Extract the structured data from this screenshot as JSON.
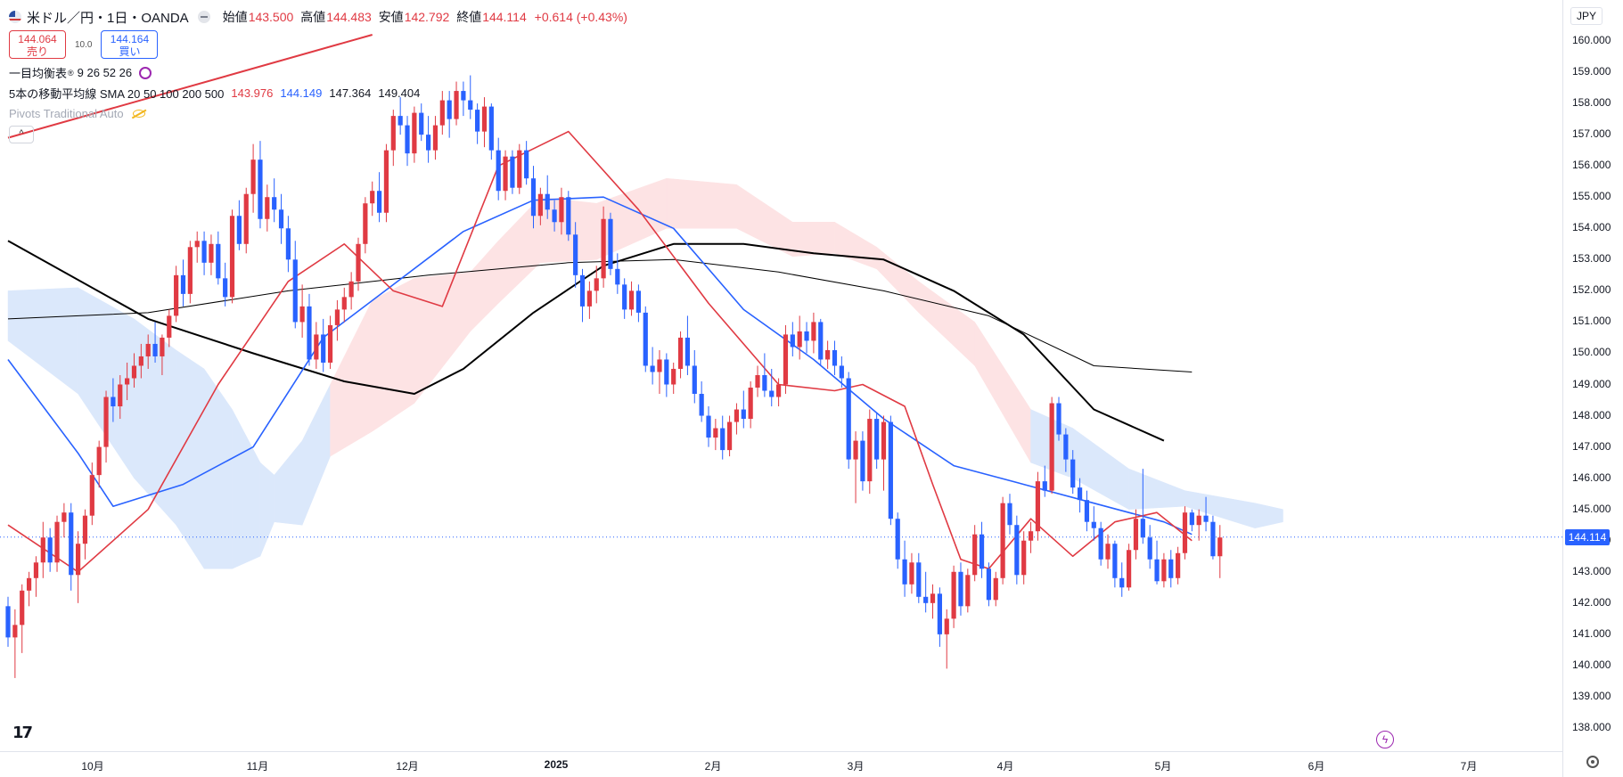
{
  "header": {
    "symbol": "米ドル／円・1日・OANDA",
    "open_label": "始値",
    "open": "143.500",
    "high_label": "高値",
    "high": "144.483",
    "low_label": "安値",
    "low": "142.792",
    "close_label": "終値",
    "close": "144.114",
    "change": "+0.614 (+0.43%)"
  },
  "quote": {
    "sell_price": "144.064",
    "sell_label": "売り",
    "spread": "10.0",
    "buy_price": "144.164",
    "buy_label": "買い"
  },
  "indicators": {
    "ichimoku_label": "一目均衡表",
    "ichimoku_params": "9 26 52 26",
    "sma_label": "5本の移動平均線 SMA 20 50 100 200 500",
    "sma_values": [
      "143.976",
      "144.149",
      "147.364",
      "149.404"
    ],
    "pivots_label": "Pivots Traditional Auto"
  },
  "axis": {
    "currency": "JPY",
    "current_price": "144.114",
    "y_ticks": [
      "160.000",
      "159.000",
      "158.000",
      "157.000",
      "156.000",
      "155.000",
      "154.000",
      "153.000",
      "152.000",
      "151.000",
      "150.000",
      "149.000",
      "148.000",
      "147.000",
      "146.000",
      "145.000",
      "144.000",
      "143.000",
      "142.000",
      "141.000",
      "140.000",
      "139.000",
      "138.000"
    ],
    "x_ticks": [
      "10月",
      "11月",
      "12月",
      "2025",
      "2月",
      "3月",
      "4月",
      "5月",
      "6月",
      "7月"
    ]
  },
  "colors": {
    "up": "#e03a43",
    "down": "#2962ff",
    "sma20": "#e03a43",
    "sma50": "#2962ff",
    "sma200": "#000000",
    "sma500": "#000000",
    "cloud_bull": "#fde3e4",
    "cloud_bear": "#dbe8fb"
  },
  "chart_data": {
    "type": "candlestick",
    "title": "米ドル／円・1日・OANDA",
    "ylim": [
      137.6,
      160.4
    ],
    "y_unit": "JPY",
    "candles_ohlc": [
      [
        141.9,
        142.2,
        140.6,
        140.9
      ],
      [
        140.9,
        141.8,
        139.6,
        141.3
      ],
      [
        141.3,
        142.6,
        140.4,
        142.4
      ],
      [
        142.4,
        143.0,
        141.9,
        142.8
      ],
      [
        142.8,
        143.5,
        142.2,
        143.3
      ],
      [
        143.3,
        144.6,
        142.8,
        144.1
      ],
      [
        144.1,
        144.4,
        143.0,
        143.3
      ],
      [
        143.3,
        144.8,
        143.0,
        144.6
      ],
      [
        144.6,
        145.2,
        144.1,
        144.9
      ],
      [
        144.9,
        145.2,
        142.4,
        142.9
      ],
      [
        142.9,
        144.3,
        142.0,
        143.9
      ],
      [
        143.9,
        145.0,
        143.4,
        144.8
      ],
      [
        144.8,
        146.5,
        144.5,
        146.1
      ],
      [
        146.1,
        147.2,
        145.7,
        147.0
      ],
      [
        147.0,
        148.8,
        146.5,
        148.6
      ],
      [
        148.6,
        149.2,
        147.8,
        148.3
      ],
      [
        148.3,
        149.3,
        147.9,
        149.0
      ],
      [
        149.0,
        149.7,
        148.5,
        149.2
      ],
      [
        149.2,
        150.0,
        148.9,
        149.6
      ],
      [
        149.6,
        150.3,
        149.2,
        149.9
      ],
      [
        149.9,
        150.6,
        149.5,
        150.3
      ],
      [
        150.3,
        151.0,
        149.7,
        149.9
      ],
      [
        149.9,
        150.6,
        149.3,
        150.5
      ],
      [
        150.5,
        151.4,
        150.2,
        151.2
      ],
      [
        151.2,
        152.8,
        151.0,
        152.5
      ],
      [
        152.5,
        153.0,
        151.5,
        151.9
      ],
      [
        151.9,
        153.6,
        151.6,
        153.4
      ],
      [
        153.4,
        153.9,
        152.9,
        153.6
      ],
      [
        153.6,
        153.9,
        152.5,
        152.9
      ],
      [
        152.9,
        153.8,
        152.5,
        153.5
      ],
      [
        153.5,
        153.9,
        152.2,
        152.4
      ],
      [
        152.4,
        152.9,
        151.5,
        151.8
      ],
      [
        151.8,
        154.6,
        151.6,
        154.4
      ],
      [
        154.4,
        154.9,
        153.3,
        153.5
      ],
      [
        153.5,
        155.3,
        153.2,
        155.1
      ],
      [
        155.1,
        156.7,
        154.5,
        156.2
      ],
      [
        156.2,
        156.8,
        154.0,
        154.3
      ],
      [
        154.3,
        155.4,
        153.9,
        155.0
      ],
      [
        155.0,
        155.6,
        154.2,
        154.6
      ],
      [
        154.6,
        155.1,
        153.5,
        154.0
      ],
      [
        154.0,
        154.4,
        152.6,
        153.0
      ],
      [
        153.0,
        153.6,
        150.8,
        151.0
      ],
      [
        151.0,
        152.2,
        150.5,
        151.5
      ],
      [
        151.5,
        151.9,
        149.6,
        149.8
      ],
      [
        149.8,
        151.0,
        149.5,
        150.6
      ],
      [
        150.6,
        151.1,
        149.4,
        149.7
      ],
      [
        149.7,
        151.2,
        149.5,
        150.9
      ],
      [
        150.9,
        151.7,
        150.4,
        151.4
      ],
      [
        151.4,
        152.1,
        151.0,
        151.8
      ],
      [
        151.8,
        152.6,
        151.4,
        152.3
      ],
      [
        152.3,
        153.7,
        152.0,
        153.5
      ],
      [
        153.5,
        155.0,
        153.2,
        154.8
      ],
      [
        154.8,
        155.5,
        154.4,
        155.2
      ],
      [
        155.2,
        155.8,
        154.2,
        154.5
      ],
      [
        154.5,
        156.7,
        154.2,
        156.5
      ],
      [
        156.5,
        157.8,
        156.0,
        157.6
      ],
      [
        157.6,
        158.2,
        157.0,
        157.3
      ],
      [
        157.3,
        157.6,
        156.0,
        156.4
      ],
      [
        156.4,
        157.9,
        156.1,
        157.7
      ],
      [
        157.7,
        158.0,
        156.8,
        157.0
      ],
      [
        157.0,
        157.6,
        156.1,
        156.5
      ],
      [
        156.5,
        157.6,
        156.2,
        157.3
      ],
      [
        157.3,
        158.4,
        157.0,
        158.1
      ],
      [
        158.1,
        158.4,
        156.9,
        157.5
      ],
      [
        157.5,
        158.7,
        157.3,
        158.4
      ],
      [
        158.4,
        158.7,
        157.6,
        158.1
      ],
      [
        158.1,
        158.9,
        157.5,
        157.8
      ],
      [
        157.8,
        158.0,
        156.7,
        157.1
      ],
      [
        157.1,
        158.2,
        156.6,
        157.9
      ],
      [
        157.9,
        158.0,
        156.2,
        156.5
      ],
      [
        156.5,
        156.9,
        154.9,
        155.2
      ],
      [
        155.2,
        156.5,
        154.9,
        156.3
      ],
      [
        156.3,
        156.5,
        155.1,
        155.3
      ],
      [
        155.3,
        156.7,
        155.1,
        156.5
      ],
      [
        156.5,
        156.8,
        155.4,
        155.6
      ],
      [
        155.6,
        156.0,
        154.0,
        154.4
      ],
      [
        154.4,
        155.3,
        154.1,
        155.1
      ],
      [
        155.1,
        155.7,
        154.3,
        154.6
      ],
      [
        154.6,
        154.9,
        153.9,
        154.2
      ],
      [
        154.2,
        155.3,
        153.8,
        155.0
      ],
      [
        155.0,
        155.2,
        153.6,
        153.8
      ],
      [
        153.8,
        154.2,
        152.1,
        152.5
      ],
      [
        152.5,
        152.7,
        151.0,
        151.5
      ],
      [
        151.5,
        152.3,
        151.1,
        152.0
      ],
      [
        152.0,
        152.8,
        151.6,
        152.4
      ],
      [
        152.4,
        154.7,
        152.1,
        154.3
      ],
      [
        154.3,
        154.5,
        152.5,
        152.7
      ],
      [
        152.7,
        153.2,
        151.9,
        152.2
      ],
      [
        152.2,
        152.4,
        151.1,
        151.4
      ],
      [
        151.4,
        152.3,
        151.2,
        152.0
      ],
      [
        152.0,
        152.2,
        151.0,
        151.3
      ],
      [
        151.3,
        151.5,
        149.4,
        149.6
      ],
      [
        149.6,
        150.2,
        149.0,
        149.4
      ],
      [
        149.4,
        150.1,
        148.7,
        149.8
      ],
      [
        149.8,
        150.0,
        148.6,
        149.0
      ],
      [
        149.0,
        149.7,
        148.7,
        149.5
      ],
      [
        149.5,
        150.7,
        149.2,
        150.5
      ],
      [
        150.5,
        151.2,
        149.3,
        149.6
      ],
      [
        149.6,
        150.1,
        148.4,
        148.7
      ],
      [
        148.7,
        149.1,
        147.8,
        148.0
      ],
      [
        148.0,
        148.3,
        147.0,
        147.3
      ],
      [
        147.3,
        147.9,
        146.9,
        147.6
      ],
      [
        147.6,
        148.0,
        146.6,
        146.9
      ],
      [
        146.9,
        148.0,
        146.7,
        147.8
      ],
      [
        147.8,
        148.4,
        147.4,
        148.2
      ],
      [
        148.2,
        148.8,
        147.6,
        147.9
      ],
      [
        147.9,
        149.1,
        147.6,
        148.9
      ],
      [
        148.9,
        149.6,
        148.6,
        149.3
      ],
      [
        149.3,
        150.0,
        148.6,
        148.8
      ],
      [
        148.8,
        149.5,
        148.3,
        148.6
      ],
      [
        148.6,
        149.2,
        148.3,
        149.0
      ],
      [
        149.0,
        150.9,
        148.7,
        150.6
      ],
      [
        150.6,
        151.0,
        149.9,
        150.2
      ],
      [
        150.2,
        151.2,
        149.8,
        150.7
      ],
      [
        150.7,
        151.0,
        150.0,
        150.4
      ],
      [
        150.4,
        151.3,
        150.0,
        151.0
      ],
      [
        151.0,
        151.1,
        149.6,
        149.8
      ],
      [
        149.8,
        150.4,
        149.5,
        150.1
      ],
      [
        150.1,
        150.4,
        149.3,
        149.6
      ],
      [
        149.6,
        149.9,
        148.9,
        149.2
      ],
      [
        149.2,
        149.4,
        146.3,
        146.6
      ],
      [
        146.6,
        147.5,
        145.2,
        147.2
      ],
      [
        147.2,
        147.5,
        145.6,
        145.9
      ],
      [
        145.9,
        148.2,
        145.5,
        147.9
      ],
      [
        147.9,
        148.1,
        146.3,
        146.6
      ],
      [
        146.6,
        148.0,
        145.6,
        147.8
      ],
      [
        147.8,
        148.0,
        144.5,
        144.7
      ],
      [
        144.7,
        144.9,
        143.1,
        143.4
      ],
      [
        143.4,
        144.0,
        142.2,
        142.6
      ],
      [
        142.6,
        143.6,
        142.3,
        143.3
      ],
      [
        143.3,
        143.6,
        142.0,
        142.2
      ],
      [
        142.2,
        143.0,
        141.7,
        142.0
      ],
      [
        142.0,
        142.6,
        141.5,
        142.3
      ],
      [
        142.3,
        142.5,
        140.6,
        141.0
      ],
      [
        141.0,
        141.8,
        139.9,
        141.5
      ],
      [
        141.5,
        143.2,
        141.2,
        143.0
      ],
      [
        143.0,
        143.3,
        141.6,
        141.9
      ],
      [
        141.9,
        143.1,
        141.7,
        142.9
      ],
      [
        142.9,
        144.5,
        142.7,
        144.2
      ],
      [
        144.2,
        144.6,
        142.8,
        143.1
      ],
      [
        143.1,
        143.3,
        141.9,
        142.1
      ],
      [
        142.1,
        143.0,
        141.9,
        142.8
      ],
      [
        142.8,
        145.4,
        142.6,
        145.2
      ],
      [
        145.2,
        145.5,
        144.2,
        144.5
      ],
      [
        144.5,
        144.8,
        142.6,
        142.9
      ],
      [
        142.9,
        144.3,
        142.6,
        144.0
      ],
      [
        144.0,
        144.6,
        143.6,
        144.3
      ],
      [
        144.3,
        146.2,
        144.0,
        145.9
      ],
      [
        145.9,
        146.4,
        145.4,
        145.6
      ],
      [
        145.6,
        148.6,
        145.5,
        148.4
      ],
      [
        148.4,
        148.6,
        147.2,
        147.4
      ],
      [
        147.4,
        147.6,
        146.2,
        146.6
      ],
      [
        146.6,
        146.9,
        145.5,
        145.7
      ],
      [
        145.7,
        146.0,
        144.9,
        145.3
      ],
      [
        145.3,
        145.6,
        144.3,
        144.6
      ],
      [
        144.6,
        145.1,
        144.0,
        144.4
      ],
      [
        144.4,
        144.6,
        143.2,
        143.4
      ],
      [
        143.4,
        144.2,
        143.1,
        143.9
      ],
      [
        143.9,
        144.0,
        142.5,
        142.8
      ],
      [
        142.8,
        143.3,
        142.2,
        142.5
      ],
      [
        142.5,
        143.9,
        142.4,
        143.7
      ],
      [
        143.7,
        145.0,
        143.4,
        144.7
      ],
      [
        144.7,
        146.3,
        143.9,
        144.1
      ],
      [
        144.1,
        144.5,
        143.1,
        143.4
      ],
      [
        143.4,
        144.0,
        142.6,
        142.7
      ],
      [
        142.7,
        143.6,
        142.5,
        143.4
      ],
      [
        143.4,
        143.7,
        142.5,
        142.8
      ],
      [
        142.8,
        143.8,
        142.6,
        143.6
      ],
      [
        143.6,
        145.1,
        143.4,
        144.9
      ],
      [
        144.9,
        145.0,
        144.3,
        144.5
      ],
      [
        144.5,
        145.0,
        144.0,
        144.8
      ],
      [
        144.8,
        145.4,
        144.3,
        144.6
      ],
      [
        144.6,
        144.8,
        143.4,
        143.5
      ],
      [
        143.5,
        144.5,
        142.8,
        144.1
      ]
    ],
    "sma20": [
      [
        0,
        144.5
      ],
      [
        10,
        143.0
      ],
      [
        20,
        145.0
      ],
      [
        30,
        149.0
      ],
      [
        40,
        152.3
      ],
      [
        48,
        153.5
      ],
      [
        55,
        152.0
      ],
      [
        62,
        151.5
      ],
      [
        70,
        156.0
      ],
      [
        80,
        157.1
      ],
      [
        90,
        154.6
      ],
      [
        100,
        151.6
      ],
      [
        110,
        149.0
      ],
      [
        118,
        148.8
      ],
      [
        122,
        149.0
      ],
      [
        128,
        148.3
      ],
      [
        132,
        145.8
      ],
      [
        136,
        143.4
      ],
      [
        140,
        143.1
      ],
      [
        146,
        144.7
      ],
      [
        152,
        143.5
      ],
      [
        158,
        144.6
      ],
      [
        164,
        144.9
      ],
      [
        169,
        144.0
      ]
    ],
    "sma50": [
      [
        0,
        149.8
      ],
      [
        10,
        146.8
      ],
      [
        15,
        145.1
      ],
      [
        25,
        145.8
      ],
      [
        35,
        147.0
      ],
      [
        45,
        150.5
      ],
      [
        55,
        152.2
      ],
      [
        65,
        153.9
      ],
      [
        75,
        154.9
      ],
      [
        85,
        155.0
      ],
      [
        95,
        154.0
      ],
      [
        105,
        151.4
      ],
      [
        115,
        149.8
      ],
      [
        125,
        147.9
      ],
      [
        135,
        146.4
      ],
      [
        145,
        145.8
      ],
      [
        155,
        145.2
      ],
      [
        165,
        144.6
      ],
      [
        169,
        144.2
      ]
    ],
    "sma200": [
      [
        0,
        153.6
      ],
      [
        20,
        151.1
      ],
      [
        35,
        150.0
      ],
      [
        48,
        149.1
      ],
      [
        58,
        148.7
      ],
      [
        65,
        149.5
      ],
      [
        75,
        151.3
      ],
      [
        85,
        152.8
      ],
      [
        95,
        153.5
      ],
      [
        105,
        153.5
      ],
      [
        115,
        153.2
      ],
      [
        125,
        153.0
      ],
      [
        135,
        152.0
      ],
      [
        145,
        150.6
      ],
      [
        155,
        148.2
      ],
      [
        165,
        147.2
      ]
    ],
    "sma500": [
      [
        0,
        151.1
      ],
      [
        20,
        151.3
      ],
      [
        40,
        152.0
      ],
      [
        60,
        152.5
      ],
      [
        80,
        152.9
      ],
      [
        95,
        153.0
      ],
      [
        110,
        152.6
      ],
      [
        125,
        152.0
      ],
      [
        140,
        151.2
      ],
      [
        155,
        149.6
      ],
      [
        169,
        149.4
      ]
    ],
    "cloud": [
      [
        0,
        152.0,
        150.4
      ],
      [
        10,
        152.1,
        148.7
      ],
      [
        18,
        151.1,
        146.0
      ],
      [
        24,
        150.1,
        144.5
      ],
      [
        28,
        149.5,
        143.1
      ],
      [
        32,
        148.2,
        143.1
      ],
      [
        36,
        146.5,
        143.5
      ],
      [
        38,
        146.1,
        144.6
      ],
      [
        42,
        147.2,
        144.5
      ],
      [
        46,
        149.0,
        146.7
      ],
      [
        52,
        151.7,
        147.5
      ],
      [
        58,
        152.4,
        148.4
      ],
      [
        66,
        152.6,
        150.7
      ],
      [
        70,
        153.6,
        151.6
      ],
      [
        76,
        155.0,
        152.9
      ],
      [
        84,
        154.8,
        153.0
      ],
      [
        94,
        155.6,
        154.0
      ],
      [
        104,
        155.4,
        154.0
      ],
      [
        112,
        154.2,
        153.1
      ],
      [
        118,
        154.2,
        153.2
      ],
      [
        124,
        153.4,
        152.7
      ],
      [
        130,
        152.3,
        151.3
      ],
      [
        138,
        151.0,
        149.6
      ],
      [
        146,
        148.2,
        146.5
      ],
      [
        152,
        147.6,
        146.0
      ],
      [
        160,
        146.3,
        145.0
      ],
      [
        168,
        145.6,
        145.1
      ],
      [
        178,
        145.2,
        144.4
      ],
      [
        182,
        145.0,
        144.6
      ]
    ],
    "pivot_line": [
      [
        0,
        156.9
      ],
      [
        52,
        160.2
      ]
    ]
  }
}
